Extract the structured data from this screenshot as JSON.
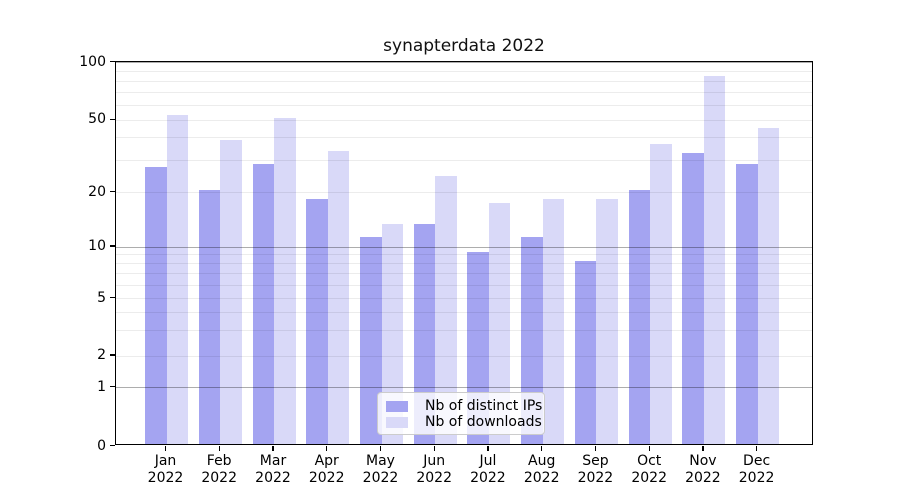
{
  "title": "synapterdata 2022",
  "chart_data": {
    "type": "bar",
    "title": "synapterdata 2022",
    "xlabel": "",
    "ylabel": "",
    "yscale": "log",
    "ylim": [
      0,
      100
    ],
    "ytick_values": [
      0,
      1,
      2,
      5,
      10,
      20,
      50,
      100
    ],
    "ytick_labels": [
      "0",
      "1",
      "2",
      "5",
      "10",
      "20",
      "50",
      "100"
    ],
    "grid": true,
    "legend_position": "lower center",
    "categories": [
      "Jan 2022",
      "Feb 2022",
      "Mar 2022",
      "Apr 2022",
      "May 2022",
      "Jun 2022",
      "Jul 2022",
      "Aug 2022",
      "Sep 2022",
      "Oct 2022",
      "Nov 2022",
      "Dec 2022"
    ],
    "series": [
      {
        "name": "Nb of distinct IPs",
        "color": "#a4a4f1",
        "values": [
          27,
          20,
          28,
          18,
          11,
          13,
          9,
          11,
          8,
          20,
          32,
          28
        ]
      },
      {
        "name": "Nb of downloads",
        "color": "#d9d9f8",
        "values": [
          52,
          38,
          50,
          33,
          13,
          24,
          17,
          18,
          18,
          36,
          83,
          44
        ]
      }
    ]
  }
}
